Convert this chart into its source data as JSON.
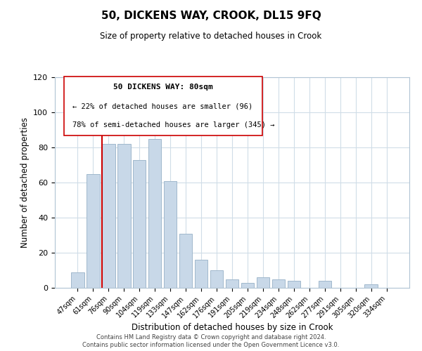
{
  "title": "50, DICKENS WAY, CROOK, DL15 9FQ",
  "subtitle": "Size of property relative to detached houses in Crook",
  "xlabel": "Distribution of detached houses by size in Crook",
  "ylabel": "Number of detached properties",
  "bar_labels": [
    "47sqm",
    "61sqm",
    "76sqm",
    "90sqm",
    "104sqm",
    "119sqm",
    "133sqm",
    "147sqm",
    "162sqm",
    "176sqm",
    "191sqm",
    "205sqm",
    "219sqm",
    "234sqm",
    "248sqm",
    "262sqm",
    "277sqm",
    "291sqm",
    "305sqm",
    "320sqm",
    "334sqm"
  ],
  "bar_values": [
    9,
    65,
    82,
    82,
    73,
    85,
    61,
    31,
    16,
    10,
    5,
    3,
    6,
    5,
    4,
    0,
    4,
    0,
    0,
    2,
    0
  ],
  "bar_color": "#c8d8e8",
  "bar_edge_color": "#a0b8cc",
  "ylim": [
    0,
    120
  ],
  "yticks": [
    0,
    20,
    40,
    60,
    80,
    100,
    120
  ],
  "vline_color": "#cc0000",
  "annotation_title": "50 DICKENS WAY: 80sqm",
  "annotation_line1": "← 22% of detached houses are smaller (96)",
  "annotation_line2": "78% of semi-detached houses are larger (345) →",
  "footer1": "Contains HM Land Registry data © Crown copyright and database right 2024.",
  "footer2": "Contains public sector information licensed under the Open Government Licence v3.0.",
  "background_color": "#ffffff",
  "grid_color": "#d0dde8"
}
